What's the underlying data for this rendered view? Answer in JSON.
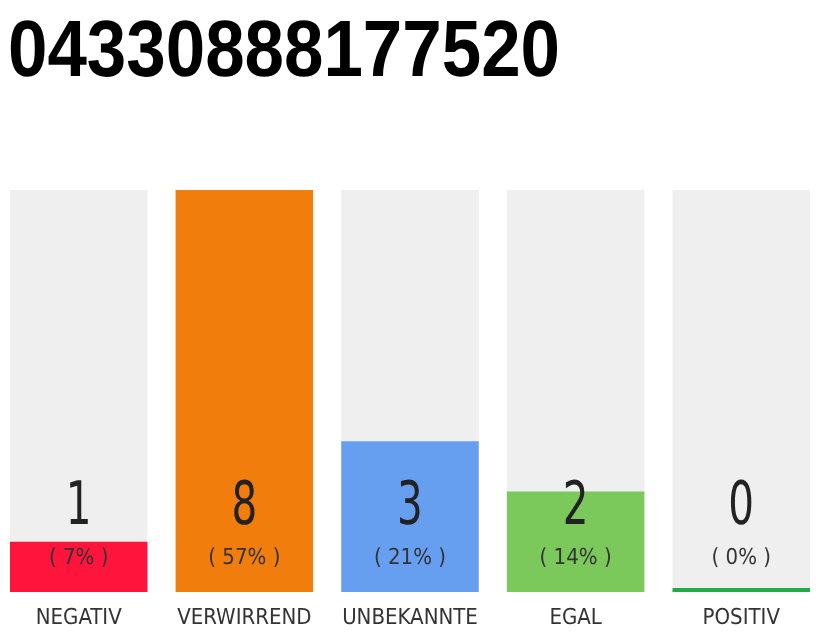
{
  "chart_data": {
    "type": "bar",
    "title": "04330888177520",
    "categories": [
      "NEGATIV",
      "VERWIRREND",
      "UNBEKANNTE",
      "EGAL",
      "POSITIV"
    ],
    "values": [
      1,
      8,
      3,
      2,
      0
    ],
    "colors": [
      "#ff143c",
      "#f07d0c",
      "#679ff0",
      "#7bc95b",
      "#22aa44"
    ],
    "value_labels": [
      "1",
      "8",
      "3",
      "2",
      "0"
    ],
    "annotations": [
      "( 7% )",
      "( 57% )",
      "( 21% )",
      "( 14% )",
      "( 0% )"
    ]
  }
}
